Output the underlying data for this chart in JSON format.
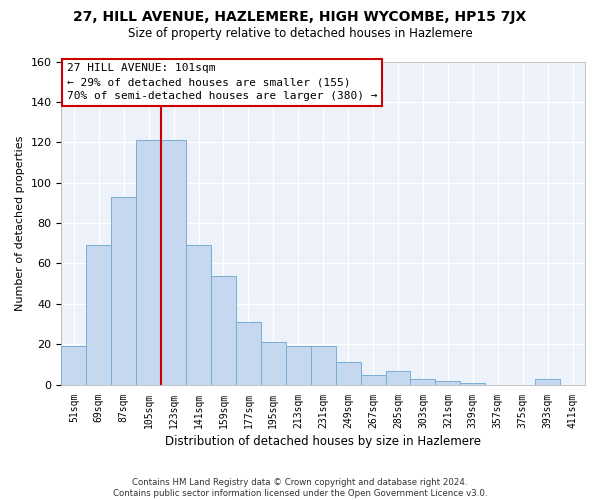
{
  "title": "27, HILL AVENUE, HAZLEMERE, HIGH WYCOMBE, HP15 7JX",
  "subtitle": "Size of property relative to detached houses in Hazlemere",
  "xlabel": "Distribution of detached houses by size in Hazlemere",
  "ylabel": "Number of detached properties",
  "bar_color": "#c5d8ef",
  "bar_edge_color": "#7aadd4",
  "background_color": "#edf1f9",
  "grid_color": "#ffffff",
  "categories": [
    "51sqm",
    "69sqm",
    "87sqm",
    "105sqm",
    "123sqm",
    "141sqm",
    "159sqm",
    "177sqm",
    "195sqm",
    "213sqm",
    "231sqm",
    "249sqm",
    "267sqm",
    "285sqm",
    "303sqm",
    "321sqm",
    "339sqm",
    "357sqm",
    "375sqm",
    "393sqm",
    "411sqm"
  ],
  "values": [
    19,
    69,
    93,
    121,
    121,
    69,
    54,
    31,
    21,
    19,
    19,
    11,
    5,
    7,
    3,
    2,
    1,
    0,
    0,
    3,
    0
  ],
  "ylim": [
    0,
    160
  ],
  "yticks": [
    0,
    20,
    40,
    60,
    80,
    100,
    120,
    140,
    160
  ],
  "red_line_x": 3.5,
  "annotation_line1": "27 HILL AVENUE: 101sqm",
  "annotation_line2": "← 29% of detached houses are smaller (155)",
  "annotation_line3": "70% of semi-detached houses are larger (380) →",
  "annotation_box_color": "#ffffff",
  "annotation_box_edge": "#cc0000",
  "footer_line1": "Contains HM Land Registry data © Crown copyright and database right 2024.",
  "footer_line2": "Contains public sector information licensed under the Open Government Licence v3.0.",
  "red_line_color": "#cc0000",
  "fig_bg": "#ffffff"
}
